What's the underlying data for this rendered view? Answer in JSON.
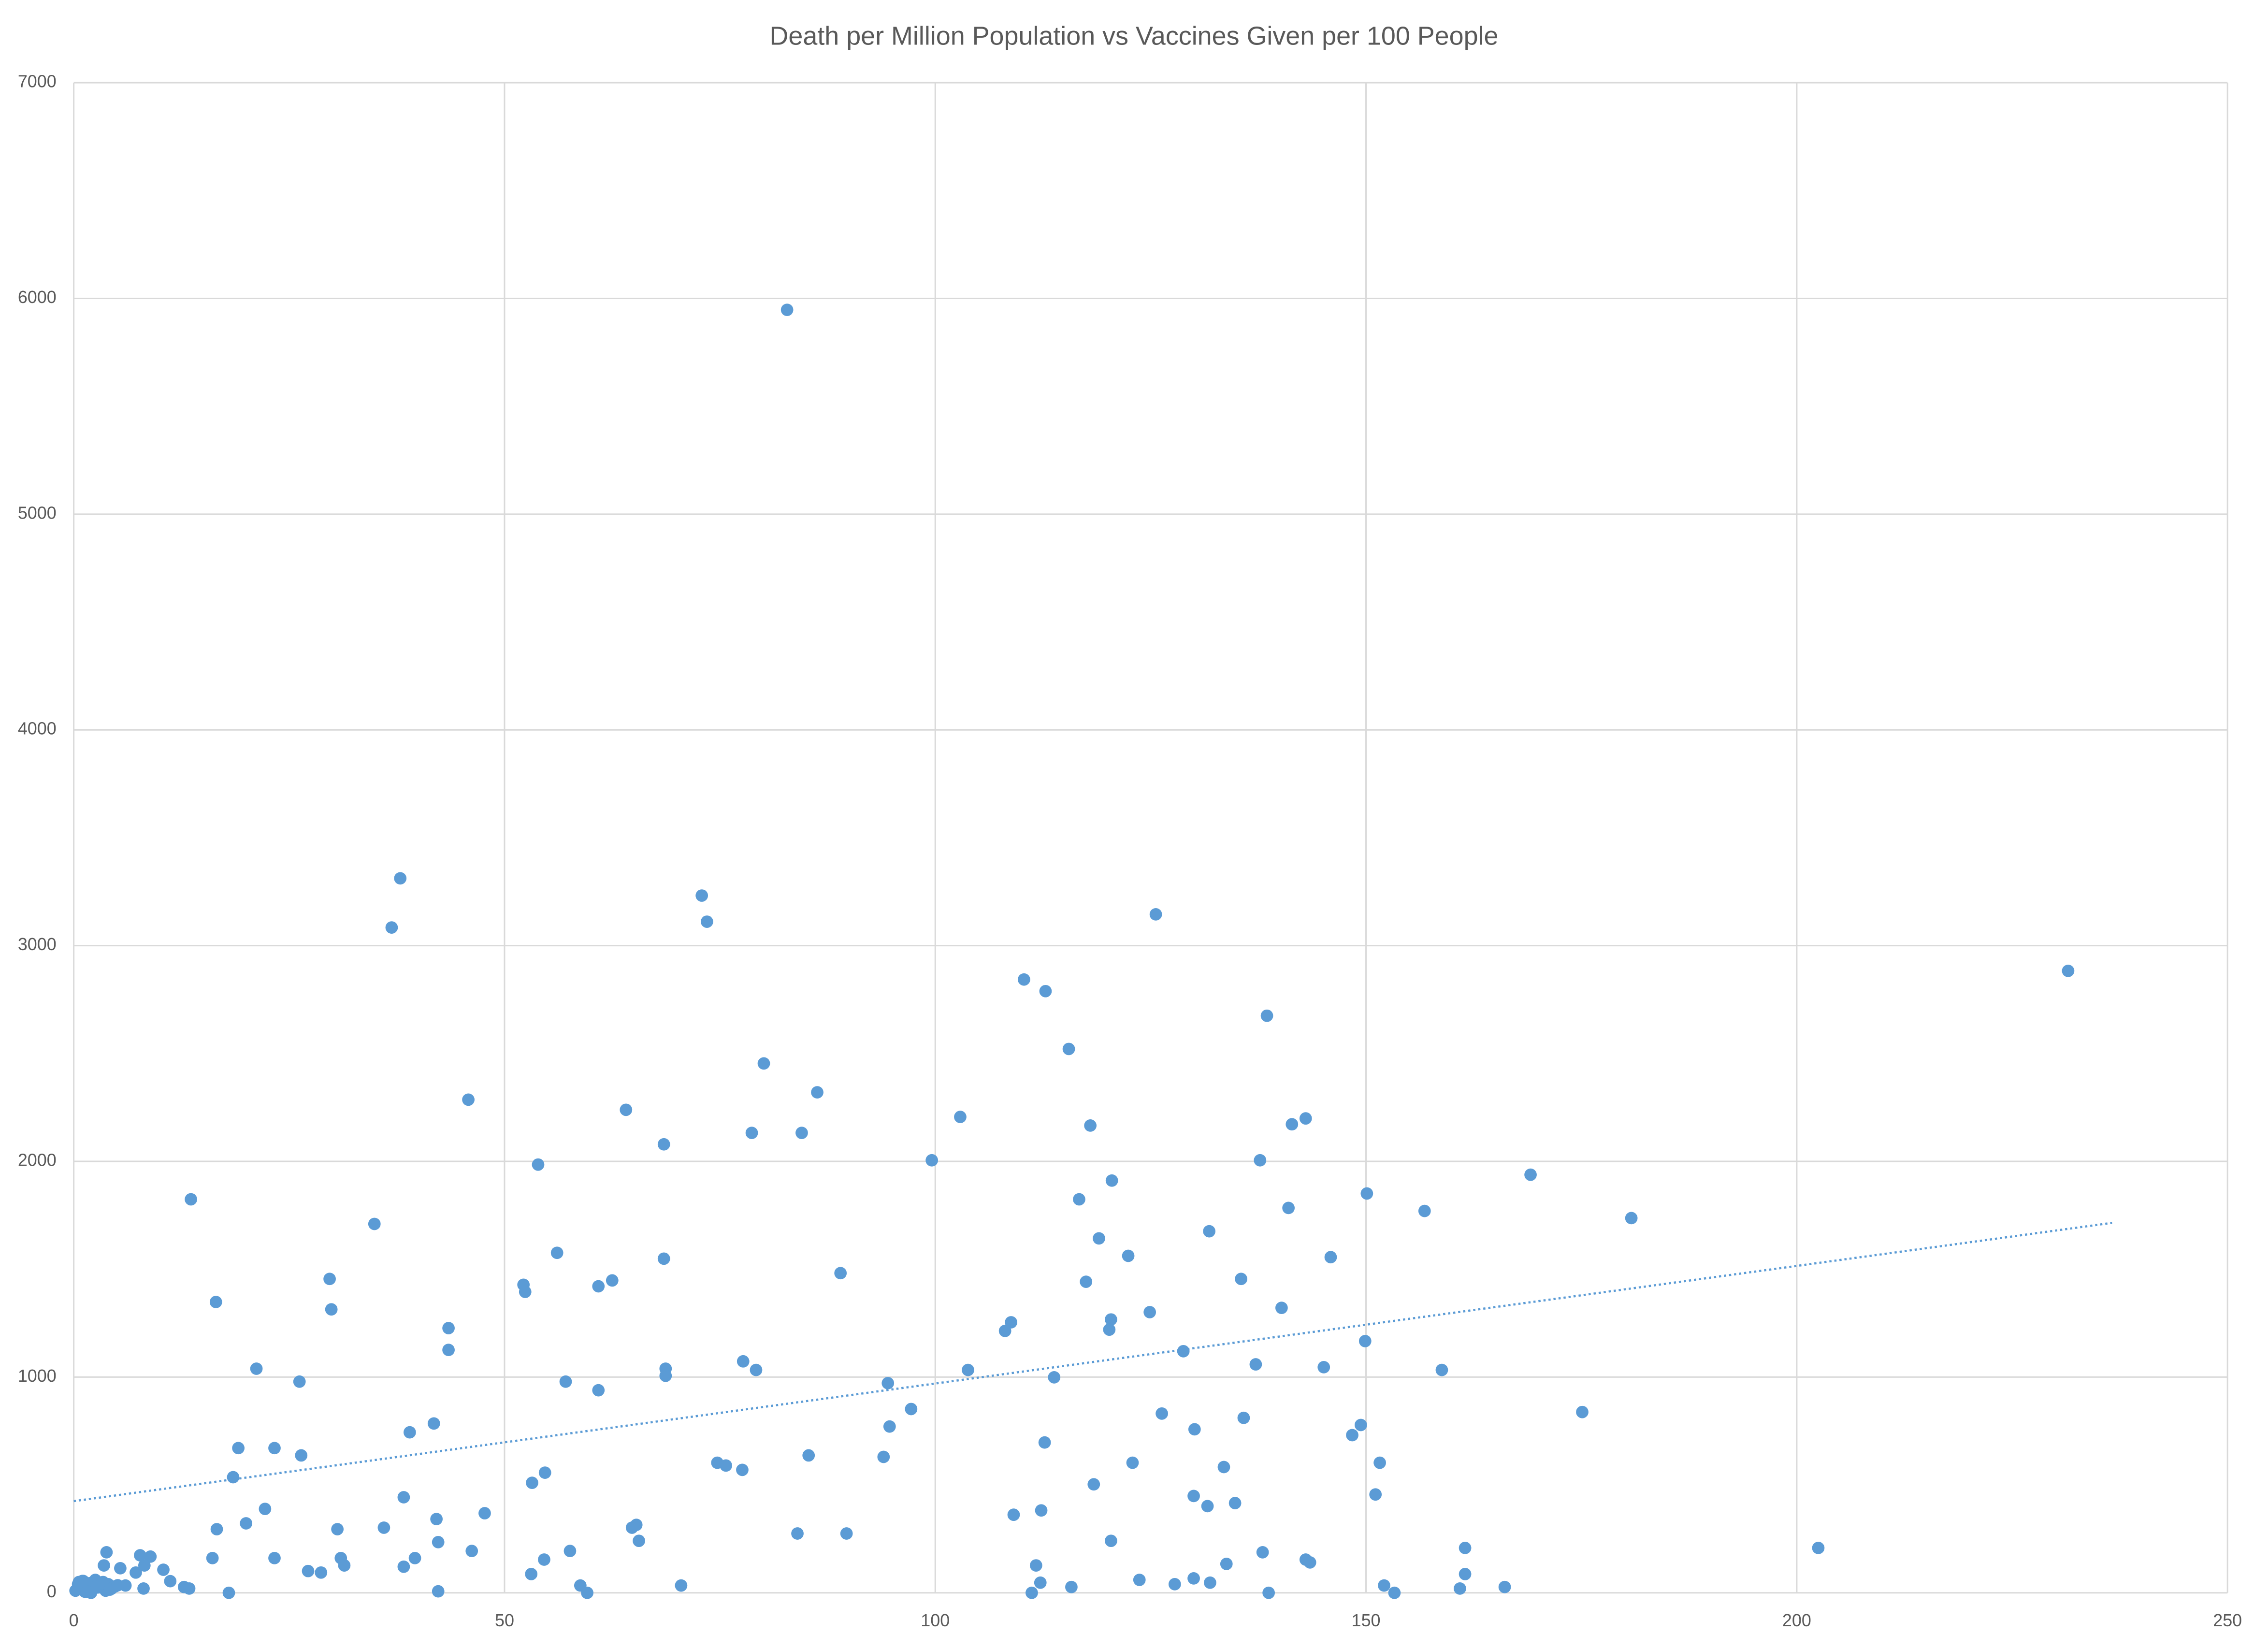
{
  "chart_data": {
    "type": "scatter",
    "title": "Death per Million Population vs Vaccines Given per 100 People",
    "xlim": [
      0,
      250
    ],
    "ylim": [
      0,
      7000
    ],
    "xticks": [
      0,
      50,
      100,
      150,
      200,
      250
    ],
    "yticks": [
      0,
      1000,
      2000,
      3000,
      4000,
      5000,
      6000,
      7000
    ],
    "grid": true,
    "color": "#5b9bd5",
    "x": [
      82.8,
      37.9,
      36.9,
      72.9,
      73.5,
      125.6,
      231.5,
      110.3,
      112.8,
      138.5,
      115.5,
      80.1,
      86.3,
      45.8,
      64.1,
      102.9,
      143.0,
      141.4,
      118.0,
      78.7,
      84.5,
      68.5,
      99.6,
      137.7,
      53.9,
      169.1,
      120.5,
      150.1,
      13.6,
      116.7,
      141.0,
      156.8,
      180.8,
      34.9,
      131.8,
      119.0,
      56.1,
      122.4,
      145.9,
      68.5,
      89.0,
      29.7,
      135.5,
      117.5,
      62.5,
      60.9,
      52.2,
      52.4,
      16.5,
      29.9,
      140.2,
      124.9,
      120.4,
      108.8,
      43.5,
      108.1,
      120.2,
      149.9,
      43.5,
      128.8,
      77.7,
      137.2,
      21.2,
      68.7,
      79.2,
      103.8,
      145.1,
      158.8,
      68.7,
      113.8,
      26.2,
      57.1,
      94.5,
      60.9,
      97.2,
      175.1,
      126.3,
      135.8,
      41.8,
      94.7,
      149.4,
      130.1,
      39.0,
      148.4,
      112.7,
      19.1,
      23.3,
      26.4,
      85.3,
      94.0,
      74.7,
      75.7,
      151.6,
      122.9,
      77.6,
      133.5,
      54.7,
      18.5,
      53.2,
      118.4,
      151.1,
      130.0,
      38.3,
      134.8,
      131.6,
      22.2,
      112.3,
      47.7,
      109.1,
      42.1,
      20.0,
      65.3,
      64.8,
      36.0,
      30.6,
      16.6,
      89.7,
      84.0,
      42.3,
      65.6,
      120.4,
      161.5,
      202.5,
      138.0,
      3.8,
      57.6,
      46.2,
      8.9,
      7.7,
      16.1,
      23.3,
      31.0,
      39.6,
      54.6,
      143.0,
      143.5,
      133.8,
      111.7,
      31.4,
      38.3,
      8.2,
      3.5,
      161.5,
      53.1,
      27.2,
      28.7,
      10.4,
      5.4,
      7.2,
      130.0,
      123.7,
      11.2,
      112.2,
      131.9,
      127.8,
      152.1,
      70.5,
      58.8,
      166.1,
      6.0,
      12.8,
      13.4,
      115.8,
      160.9,
      8.1,
      42.3,
      111.2,
      59.6,
      18.0,
      138.7,
      153.3,
      0.2,
      0.5,
      0.8,
      1.0,
      1.3,
      1.6,
      1.9,
      2.2,
      2.5,
      2.8,
      3.1,
      3.4,
      3.7,
      4.0,
      4.4,
      4.8,
      0.6,
      1.5,
      2.4,
      3.3,
      4.2,
      5.1,
      1.1,
      2.0
    ],
    "y": [
      5947,
      3312,
      3084,
      3232,
      3111,
      3145,
      2883,
      2843,
      2789,
      2675,
      2521,
      2454,
      2320,
      2286,
      2239,
      2206,
      2199,
      2172,
      2166,
      2132,
      2132,
      2079,
      2005,
      2005,
      1985,
      1938,
      1911,
      1851,
      1824,
      1824,
      1784,
      1770,
      1737,
      1710,
      1676,
      1643,
      1576,
      1562,
      1556,
      1549,
      1482,
      1455,
      1455,
      1442,
      1448,
      1421,
      1428,
      1395,
      1348,
      1314,
      1321,
      1301,
      1267,
      1254,
      1227,
      1214,
      1220,
      1167,
      1126,
      1120,
      1073,
      1059,
      1039,
      1039,
      1033,
      1033,
      1046,
      1033,
      1006,
      999,
      979,
      979,
      972,
      939,
      852,
      838,
      831,
      811,
      785,
      771,
      778,
      758,
      744,
      731,
      697,
      671,
      671,
      637,
      637,
      630,
      603,
      590,
      603,
      603,
      570,
      583,
      557,
      536,
      510,
      503,
      456,
      449,
      443,
      416,
      402,
      389,
      382,
      369,
      362,
      342,
      322,
      315,
      302,
      302,
      295,
      295,
      275,
      275,
      235,
      241,
      241,
      208,
      208,
      188,
      188,
      194,
      194,
      168,
      174,
      161,
      161,
      161,
      161,
      154,
      154,
      141,
      134,
      127,
      127,
      121,
      127,
      127,
      87,
      87,
      101,
      94,
      107,
      114,
      94,
      67,
      60,
      54,
      47,
      47,
      40,
      34,
      34,
      34,
      27,
      34,
      27,
      20,
      27,
      20,
      20,
      7,
      0,
      0,
      0,
      0,
      0,
      10,
      40,
      20,
      55,
      5,
      30,
      45,
      15,
      60,
      25,
      35,
      50,
      10,
      40,
      20,
      30,
      50,
      5,
      25,
      45,
      15,
      35,
      55,
      0
    ],
    "trendline": {
      "x": [
        0,
        236.6
      ],
      "y": [
        425,
        1715
      ],
      "color": "#5b9bd5"
    }
  }
}
